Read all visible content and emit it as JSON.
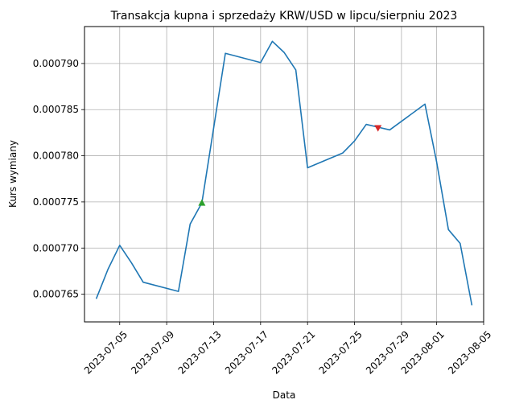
{
  "chart_data": {
    "type": "line",
    "title": "Transakcja kupna i sprzedaży KRW/USD w lipcu/sierpniu 2023",
    "xlabel": "Data",
    "ylabel": "Kurs wymiany",
    "grid": true,
    "xlim": [
      "2023-07-02",
      "2023-08-05"
    ],
    "ylim": [
      0.000762,
      0.000794
    ],
    "x_ticks": [
      "2023-07-05",
      "2023-07-09",
      "2023-07-13",
      "2023-07-17",
      "2023-07-21",
      "2023-07-25",
      "2023-07-29",
      "2023-08-01",
      "2023-08-05"
    ],
    "y_ticks": [
      "0.000765",
      "0.000770",
      "0.000775",
      "0.000780",
      "0.000785",
      "0.000790"
    ],
    "line_color": "#1f77b4",
    "series": [
      {
        "x": [
          "2023-07-03",
          "2023-07-04",
          "2023-07-05",
          "2023-07-06",
          "2023-07-07",
          "2023-07-10",
          "2023-07-11",
          "2023-07-12",
          "2023-07-14",
          "2023-07-17",
          "2023-07-18",
          "2023-07-19",
          "2023-07-20",
          "2023-07-21",
          "2023-07-24",
          "2023-07-25",
          "2023-07-26",
          "2023-07-27",
          "2023-07-28",
          "2023-07-31",
          "2023-08-01",
          "2023-08-02",
          "2023-08-03",
          "2023-08-04"
        ],
        "values": [
          0.0007645,
          0.0007677,
          0.0007703,
          0.0007684,
          0.0007663,
          0.0007653,
          0.0007726,
          0.0007749,
          0.0007911,
          0.0007901,
          0.0007924,
          0.0007912,
          0.0007893,
          0.0007787,
          0.0007803,
          0.0007816,
          0.0007834,
          0.0007831,
          0.0007828,
          0.0007856,
          0.0007793,
          0.000772,
          0.0007705,
          0.0007638
        ]
      }
    ],
    "markers": [
      {
        "type": "buy",
        "x": "2023-07-12",
        "y": 0.0007749,
        "shape": "triangle-up",
        "color": "#2ca02c"
      },
      {
        "type": "sell",
        "x": "2023-07-27",
        "y": 0.000783,
        "shape": "triangle-down",
        "color": "#d62728"
      }
    ]
  }
}
